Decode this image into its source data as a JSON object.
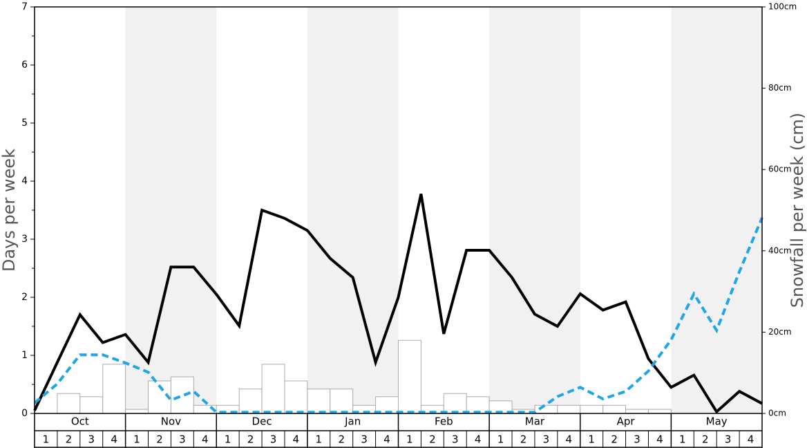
{
  "chart_data": {
    "type": "bar",
    "ylabel": "Days per week",
    "y2label": "Snowfall per week (cm)",
    "months": [
      "Oct",
      "Nov",
      "Dec",
      "Jan",
      "Feb",
      "Mar",
      "Apr",
      "May"
    ],
    "categories": [
      "1",
      "2",
      "3",
      "4",
      "1",
      "2",
      "3",
      "4",
      "1",
      "2",
      "3",
      "4",
      "1",
      "2",
      "3",
      "4",
      "1",
      "2",
      "3",
      "4",
      "1",
      "2",
      "3",
      "4",
      "1",
      "2",
      "3",
      "4",
      "1",
      "2",
      "3",
      "4"
    ],
    "xlim": [
      0,
      32
    ],
    "ylim": [
      0,
      7
    ],
    "yticks": [
      0,
      1,
      2,
      3,
      4,
      5,
      6,
      7
    ],
    "yminorticks": [
      0.5,
      1.5,
      2.5,
      3.5,
      4.5,
      5.5,
      6.5
    ],
    "y2lim": [
      0,
      100
    ],
    "y2ticks": [
      {
        "value": 0,
        "label": "0cm"
      },
      {
        "value": 20,
        "label": "20cm"
      },
      {
        "value": 40,
        "label": "40cm"
      },
      {
        "value": 60,
        "label": "60cm"
      },
      {
        "value": 80,
        "label": "80cm"
      },
      {
        "value": 100,
        "label": "100cm"
      }
    ],
    "band_color": "#f1f1f1",
    "bars": {
      "axis": "y2",
      "color": "#ffffff",
      "edge": "#aaaaaa",
      "values": [
        0,
        4.9,
        4.1,
        12.1,
        1.0,
        8.0,
        9.0,
        2.0,
        2.0,
        6.0,
        12.1,
        8.0,
        6.0,
        6.0,
        2.0,
        4.1,
        18.0,
        2.0,
        4.9,
        4.1,
        3.1,
        1.0,
        2.0,
        2.0,
        2.0,
        2.0,
        1.0,
        1.0,
        0,
        0,
        0,
        0
      ]
    },
    "lines": [
      {
        "color": "#000000",
        "dashed": false,
        "x": [
          0,
          1,
          2,
          3,
          4,
          5,
          6,
          7,
          8,
          9,
          10,
          11,
          12,
          13,
          14,
          15,
          16,
          17,
          18,
          19,
          20,
          21,
          22,
          23,
          24,
          25,
          26,
          27,
          28,
          29,
          30,
          31,
          32
        ],
        "values": [
          0.05,
          0.88,
          1.7,
          1.22,
          1.36,
          0.88,
          2.52,
          2.52,
          2.05,
          1.51,
          3.5,
          3.36,
          3.15,
          2.67,
          2.34,
          0.88,
          2.0,
          3.78,
          1.37,
          2.81,
          2.81,
          2.34,
          1.71,
          1.5,
          2.06,
          1.78,
          1.92,
          0.94,
          0.45,
          0.66,
          0.03,
          0.38,
          0.17
        ]
      },
      {
        "color": "#1ea7e8",
        "dashed": true,
        "x": [
          0,
          1,
          2,
          3,
          4,
          5,
          6,
          7,
          8,
          9,
          10,
          11,
          12,
          13,
          14,
          15,
          16,
          17,
          18,
          19,
          20,
          21,
          22,
          23,
          24,
          25,
          26,
          27,
          28,
          29,
          30,
          31,
          32
        ],
        "values": [
          0.18,
          0.51,
          1.01,
          1.01,
          0.87,
          0.71,
          0.23,
          0.38,
          0.02,
          0.02,
          0.02,
          0.02,
          0.02,
          0.02,
          0.02,
          0.02,
          0.02,
          0.02,
          0.02,
          0.02,
          0.02,
          0.02,
          0.02,
          0.29,
          0.45,
          0.25,
          0.38,
          0.73,
          1.27,
          2.06,
          1.43,
          2.44,
          3.37
        ]
      }
    ]
  }
}
